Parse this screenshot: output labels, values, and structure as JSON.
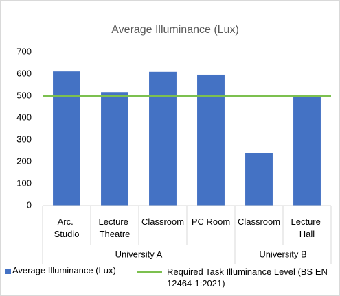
{
  "chart_data": {
    "type": "bar",
    "title": "Average Illuminance (Lux)",
    "categories": [
      "Arc. Studio",
      "Lecture Theatre",
      "Classroom",
      "PC Room",
      "Classroom",
      "Lecture Hall"
    ],
    "groups": [
      {
        "name": "University A",
        "count": 4
      },
      {
        "name": "University B",
        "count": 2
      }
    ],
    "series": [
      {
        "name": "Average Illuminance (Lux)",
        "color": "#4472c4",
        "values": [
          612,
          518,
          610,
          597,
          240,
          502
        ]
      }
    ],
    "reference_line": {
      "name": "Required Task Illuminance Level (BS EN 12464-1:2021)",
      "color": "#7cc04f",
      "value": 500
    },
    "ylim": [
      0,
      700
    ],
    "yticks": [
      0,
      100,
      200,
      300,
      400,
      500,
      600,
      700
    ],
    "grid": false,
    "legend": "bottom"
  }
}
